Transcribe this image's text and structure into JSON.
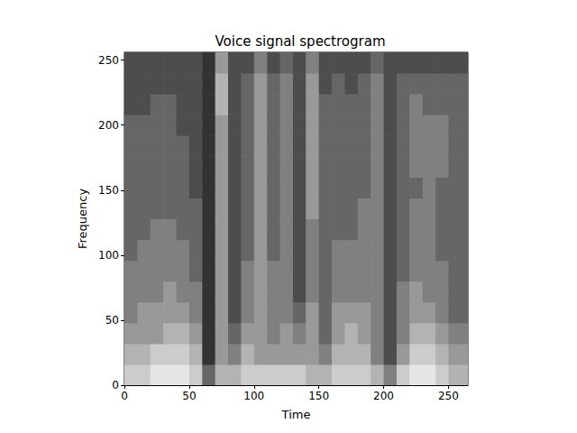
{
  "chart_data": {
    "type": "heatmap",
    "title": "Voice signal spectrogram",
    "xlabel": "Time",
    "ylabel": "Frequency",
    "xlim": [
      0,
      265
    ],
    "ylim": [
      0,
      256
    ],
    "xticks": [
      0,
      50,
      100,
      150,
      200,
      250
    ],
    "yticks": [
      0,
      50,
      100,
      150,
      200,
      250
    ],
    "grid": false,
    "x_edges": [
      0,
      10,
      20,
      30,
      40,
      50,
      60,
      70,
      80,
      90,
      100,
      110,
      120,
      130,
      140,
      150,
      160,
      170,
      180,
      190,
      200,
      210,
      220,
      230,
      240,
      250,
      260,
      265
    ],
    "y_edges": [
      0,
      16,
      32,
      48,
      64,
      80,
      96,
      112,
      128,
      144,
      160,
      176,
      192,
      208,
      224,
      240,
      256
    ],
    "clim": [
      0,
      10
    ],
    "cells": [
      [
        8,
        7,
        6,
        5,
        5,
        5,
        4,
        4,
        4,
        4,
        4,
        4,
        4,
        3,
        3,
        3
      ],
      [
        8,
        7,
        6,
        6,
        5,
        5,
        5,
        4,
        4,
        4,
        4,
        4,
        4,
        3,
        3,
        3
      ],
      [
        9,
        8,
        6,
        6,
        5,
        5,
        5,
        5,
        4,
        4,
        4,
        4,
        4,
        4,
        3,
        3
      ],
      [
        9,
        8,
        7,
        6,
        6,
        5,
        5,
        5,
        4,
        4,
        4,
        4,
        4,
        4,
        3,
        3
      ],
      [
        9,
        8,
        7,
        6,
        5,
        5,
        5,
        4,
        4,
        4,
        4,
        4,
        3,
        3,
        3,
        3
      ],
      [
        8,
        7,
        6,
        5,
        5,
        4,
        4,
        4,
        4,
        3,
        3,
        3,
        3,
        3,
        3,
        3
      ],
      [
        4,
        2,
        2,
        2,
        2,
        2,
        2,
        2,
        2,
        2,
        2,
        2,
        2,
        2,
        2,
        2
      ],
      [
        7,
        6,
        6,
        6,
        6,
        6,
        6,
        6,
        6,
        6,
        6,
        6,
        6,
        7,
        7,
        6
      ],
      [
        7,
        5,
        4,
        3,
        3,
        3,
        3,
        3,
        3,
        3,
        3,
        3,
        3,
        3,
        3,
        3
      ],
      [
        8,
        7,
        6,
        5,
        5,
        5,
        4,
        4,
        4,
        4,
        4,
        4,
        4,
        4,
        4,
        3
      ],
      [
        8,
        6,
        6,
        6,
        6,
        6,
        6,
        6,
        6,
        6,
        6,
        6,
        6,
        6,
        6,
        5
      ],
      [
        8,
        6,
        5,
        5,
        5,
        5,
        4,
        4,
        4,
        4,
        4,
        4,
        4,
        4,
        4,
        3
      ],
      [
        8,
        6,
        6,
        5,
        5,
        5,
        5,
        5,
        5,
        5,
        5,
        5,
        5,
        5,
        5,
        4
      ],
      [
        8,
        6,
        5,
        4,
        3,
        3,
        3,
        3,
        3,
        3,
        3,
        3,
        3,
        3,
        3,
        3
      ],
      [
        7,
        6,
        6,
        6,
        5,
        5,
        5,
        5,
        6,
        6,
        6,
        6,
        6,
        6,
        6,
        5
      ],
      [
        7,
        5,
        4,
        4,
        4,
        4,
        4,
        4,
        4,
        4,
        4,
        4,
        4,
        4,
        3,
        3
      ],
      [
        8,
        7,
        6,
        6,
        5,
        5,
        5,
        4,
        4,
        4,
        4,
        4,
        4,
        4,
        4,
        3
      ],
      [
        8,
        7,
        7,
        6,
        5,
        5,
        5,
        4,
        4,
        4,
        4,
        4,
        4,
        4,
        3,
        3
      ],
      [
        8,
        7,
        6,
        6,
        5,
        5,
        5,
        5,
        5,
        4,
        4,
        4,
        4,
        4,
        4,
        3
      ],
      [
        7,
        5,
        5,
        5,
        5,
        5,
        5,
        5,
        5,
        5,
        5,
        5,
        5,
        5,
        5,
        4
      ],
      [
        5,
        3,
        3,
        3,
        3,
        3,
        3,
        3,
        3,
        3,
        3,
        3,
        3,
        3,
        3,
        3
      ],
      [
        8,
        6,
        5,
        5,
        5,
        4,
        4,
        4,
        4,
        4,
        4,
        4,
        4,
        4,
        4,
        3
      ],
      [
        9,
        8,
        7,
        6,
        6,
        5,
        5,
        5,
        5,
        4,
        5,
        5,
        5,
        5,
        4,
        3
      ],
      [
        9,
        8,
        7,
        6,
        5,
        5,
        5,
        5,
        5,
        5,
        5,
        5,
        5,
        4,
        4,
        3
      ],
      [
        8,
        7,
        6,
        5,
        5,
        5,
        4,
        4,
        4,
        4,
        5,
        5,
        5,
        4,
        4,
        3
      ],
      [
        7,
        6,
        5,
        4,
        4,
        4,
        4,
        4,
        4,
        4,
        4,
        4,
        4,
        4,
        4,
        3
      ],
      [
        7,
        6,
        5,
        4,
        4,
        4,
        4,
        4,
        4,
        4,
        4,
        4,
        4,
        4,
        4,
        3
      ]
    ]
  }
}
